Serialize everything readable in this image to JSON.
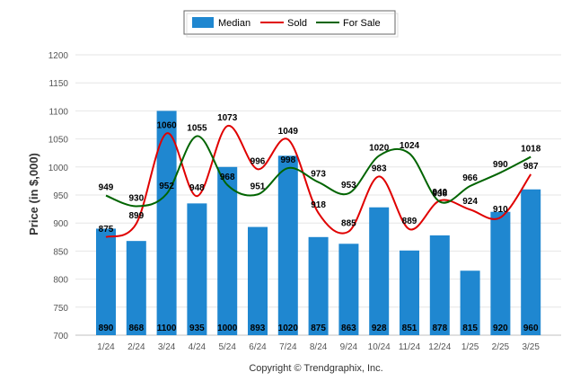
{
  "chart_data": {
    "type": "bar",
    "categories": [
      "1/24",
      "2/24",
      "3/24",
      "4/24",
      "5/24",
      "6/24",
      "7/24",
      "8/24",
      "9/24",
      "10/24",
      "11/24",
      "12/24",
      "1/25",
      "2/25",
      "3/25"
    ],
    "series": [
      {
        "name": "Median",
        "type": "bar",
        "color": "#1f87d0",
        "values": [
          890,
          868,
          1100,
          935,
          1000,
          893,
          1020,
          875,
          863,
          928,
          851,
          878,
          815,
          920,
          960
        ]
      },
      {
        "name": "Sold",
        "type": "line",
        "color": "#e00000",
        "values": [
          875,
          899,
          1060,
          948,
          1073,
          996,
          1049,
          918,
          885,
          983,
          889,
          940,
          924,
          910,
          987
        ]
      },
      {
        "name": "For Sale",
        "type": "line",
        "color": "#006400",
        "values": [
          949,
          930,
          952,
          1055,
          968,
          951,
          998,
          973,
          953,
          1020,
          1024,
          938,
          966,
          990,
          1018
        ]
      }
    ],
    "ylabel": "Price (in $,000)",
    "ylim": [
      700,
      1200
    ],
    "yticks": [
      700,
      750,
      800,
      850,
      900,
      950,
      1000,
      1050,
      1100,
      1150,
      1200
    ],
    "grid": true,
    "legend": "top-center",
    "footer": "Copyright © Trendgraphix, Inc."
  }
}
